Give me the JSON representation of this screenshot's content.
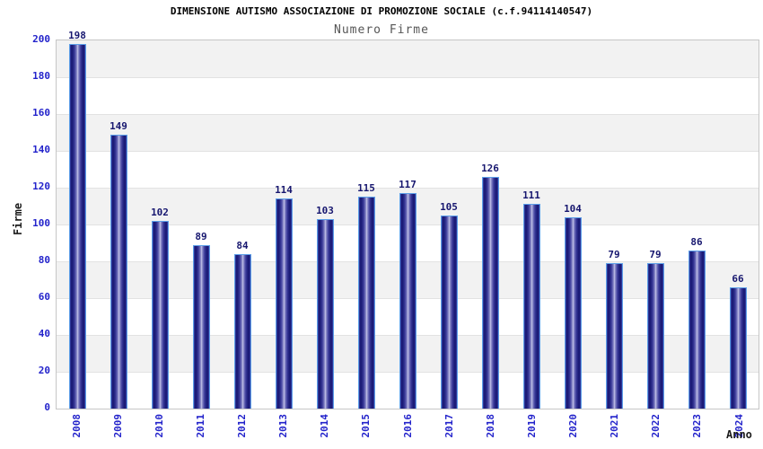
{
  "chart_data": {
    "type": "bar",
    "title": "DIMENSIONE AUTISMO ASSOCIAZIONE DI PROMOZIONE SOCIALE (c.f.94114140547)",
    "subtitle": "Numero Firme",
    "xlabel": "Anno",
    "ylabel": "Firme",
    "categories": [
      "2008",
      "2009",
      "2010",
      "2011",
      "2012",
      "2013",
      "2014",
      "2015",
      "2016",
      "2017",
      "2018",
      "2019",
      "2020",
      "2021",
      "2022",
      "2023",
      "2024"
    ],
    "values": [
      198,
      149,
      102,
      89,
      84,
      114,
      103,
      115,
      117,
      105,
      126,
      111,
      104,
      79,
      79,
      86,
      66
    ],
    "ylim": [
      0,
      200
    ],
    "ytick_step": 20,
    "yticks": [
      0,
      20,
      40,
      60,
      80,
      100,
      120,
      140,
      160,
      180,
      200
    ],
    "grid": "horizontal-alternating-bands",
    "legend_position": "none",
    "bar_labels_shown": true,
    "x_labels_rotation": "vertical"
  },
  "colors": {
    "background": "#ffffff",
    "title_text": "#000000",
    "subtitle_text": "#565656",
    "axis_tick_text": "#2323cb",
    "value_label_text": "#17176f",
    "axis_title_text": "#1b1b1b",
    "band_shade": "#f2f2f2",
    "band_plain": "#ffffff",
    "gridline": "#e2e2e2",
    "plot_border": "#c6c6c6",
    "bar_border": "#5c9fe8",
    "bar_edge": "#3d49ae",
    "bar_dark": "#1c1c78",
    "bar_mid": "#8585c6",
    "bar_light": "#c6c6ea"
  }
}
